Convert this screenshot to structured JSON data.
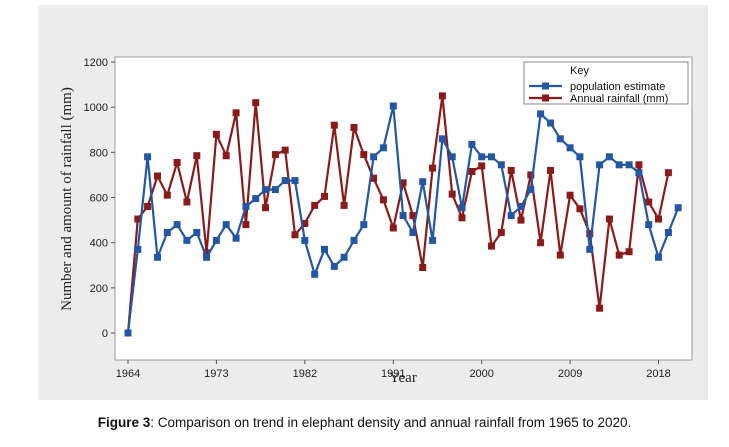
{
  "caption": {
    "label": "Figure 3",
    "text": ": Comparison on trend in elephant density and annual rainfall from 1965 to 2020."
  },
  "chart_data": {
    "type": "line",
    "title": "",
    "xlabel": "Year",
    "ylabel": "Number and amount of rainfall (mm)",
    "xlim": [
      1964,
      2021
    ],
    "ylim": [
      0,
      1200
    ],
    "x_ticks": [
      1964,
      1973,
      1982,
      1991,
      2000,
      2009,
      2018
    ],
    "y_ticks": [
      0,
      200,
      400,
      600,
      800,
      1000,
      1200
    ],
    "grid": false,
    "legend": {
      "title": "Key",
      "placement": "top-right"
    },
    "series": [
      {
        "name": "population estimate",
        "color": "#2357a3",
        "marker": "square",
        "x": [
          1964,
          1965,
          1966,
          1967,
          1968,
          1969,
          1970,
          1971,
          1972,
          1973,
          1974,
          1975,
          1976,
          1977,
          1978,
          1979,
          1980,
          1981,
          1982,
          1983,
          1984,
          1985,
          1986,
          1987,
          1988,
          1989,
          1990,
          1991,
          1992,
          1993,
          1994,
          1995,
          1996,
          1997,
          1998,
          1999,
          2000,
          2001,
          2002,
          2003,
          2004,
          2005,
          2006,
          2007,
          2008,
          2009,
          2010,
          2011,
          2012,
          2013,
          2014,
          2015,
          2016,
          2017,
          2018,
          2019,
          2020
        ],
        "values": [
          0,
          370,
          780,
          335,
          445,
          480,
          410,
          445,
          335,
          410,
          480,
          420,
          560,
          595,
          635,
          635,
          675,
          675,
          410,
          260,
          370,
          295,
          335,
          410,
          480,
          780,
          820,
          1005,
          520,
          445,
          670,
          410,
          860,
          780,
          555,
          835,
          780,
          780,
          745,
          520,
          560,
          635,
          970,
          930,
          860,
          820,
          780,
          370,
          745,
          780,
          745,
          745,
          710,
          480,
          335,
          445,
          555
        ]
      },
      {
        "name": "Annual rainfall (mm)",
        "color": "#8b1a1a",
        "marker": "square",
        "x": [
          1964,
          1965,
          1966,
          1967,
          1968,
          1969,
          1970,
          1971,
          1972,
          1973,
          1974,
          1975,
          1976,
          1977,
          1978,
          1979,
          1980,
          1981,
          1982,
          1983,
          1984,
          1985,
          1986,
          1987,
          1988,
          1989,
          1990,
          1991,
          1992,
          1993,
          1994,
          1995,
          1996,
          1997,
          1998,
          1999,
          2000,
          2001,
          2002,
          2003,
          2004,
          2005,
          2006,
          2007,
          2008,
          2009,
          2010,
          2011,
          2012,
          2013,
          2014,
          2015,
          2016,
          2017,
          2018,
          2019
        ],
        "values": [
          0,
          505,
          560,
          695,
          610,
          755,
          580,
          785,
          355,
          880,
          785,
          975,
          480,
          1020,
          555,
          790,
          810,
          435,
          485,
          565,
          605,
          920,
          565,
          910,
          790,
          685,
          590,
          465,
          665,
          520,
          290,
          730,
          1050,
          615,
          510,
          715,
          740,
          385,
          445,
          720,
          500,
          700,
          400,
          720,
          345,
          610,
          550,
          440,
          110,
          505,
          345,
          360,
          745,
          580,
          505,
          710
        ]
      }
    ]
  }
}
